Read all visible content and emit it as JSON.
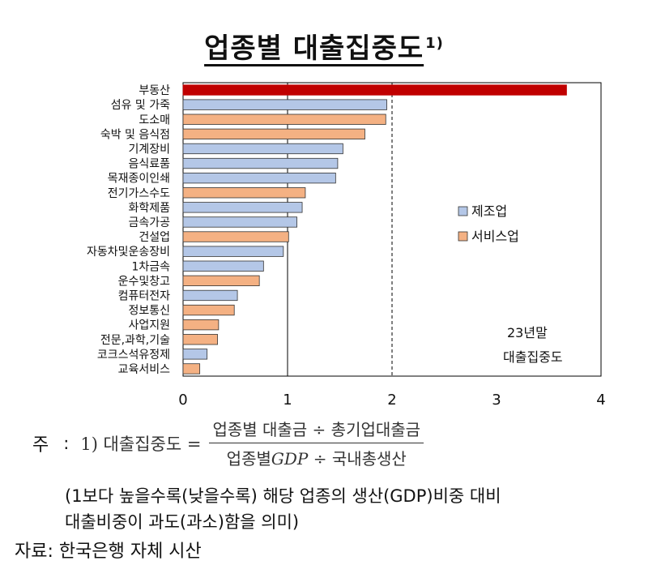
{
  "title": "업종별 대출집중도",
  "title_sup": "1)",
  "legend": {
    "manufacturing": "제조업",
    "service": "서비스업"
  },
  "colors": {
    "title_bar": "#c00000",
    "manufacturing": "#b4c7e7",
    "service": "#f4b183",
    "bar_border": "#333333"
  },
  "annotation": {
    "line1": "23년말",
    "line2": "대출집중도"
  },
  "chart_data": {
    "type": "bar",
    "orientation": "horizontal",
    "categories": [
      "부동산",
      "섬유 및 가죽",
      "도소매",
      "숙박 및 음식점",
      "기계장비",
      "음식료품",
      "목재종이인쇄",
      "전기가스수도",
      "화학제품",
      "금속가공",
      "건설업",
      "자동차및운송장비",
      "1차금속",
      "운수및창고",
      "컴퓨터전자",
      "정보통신",
      "사업지원",
      "전문,과학,기술",
      "코크스석유정제",
      "교육서비스"
    ],
    "values": [
      3.67,
      1.95,
      1.94,
      1.74,
      1.53,
      1.48,
      1.46,
      1.17,
      1.14,
      1.09,
      1.01,
      0.96,
      0.77,
      0.73,
      0.52,
      0.49,
      0.34,
      0.33,
      0.23,
      0.16
    ],
    "groups": [
      "other",
      "manufacturing",
      "service",
      "service",
      "manufacturing",
      "manufacturing",
      "manufacturing",
      "service",
      "manufacturing",
      "manufacturing",
      "service",
      "manufacturing",
      "manufacturing",
      "service",
      "manufacturing",
      "service",
      "service",
      "service",
      "manufacturing",
      "service"
    ],
    "xlim": [
      0,
      4
    ],
    "xticks": [
      "0",
      "1",
      "2",
      "3",
      "4"
    ],
    "reference_lines": [
      {
        "x": 1,
        "style": "solid"
      },
      {
        "x": 2,
        "style": "dashed"
      }
    ],
    "legend_position": "right-middle"
  },
  "notes": {
    "note_label": "주",
    "formula_prefix": "1) 대출집중도 =",
    "numerator": "업종별 대출금 ÷ 총기업대출금",
    "denominator_pre": "업종별",
    "denominator_gdp": "GDP",
    "denominator_post": "÷ 국내총생산",
    "explain_line1": "(1보다 높을수록(낮을수록) 해당 업종의 생산(GDP)비중 대비",
    "explain_line2": "대출비중이 과도(과소)함을 의미)",
    "source": "자료: 한국은행 자체 시산"
  }
}
